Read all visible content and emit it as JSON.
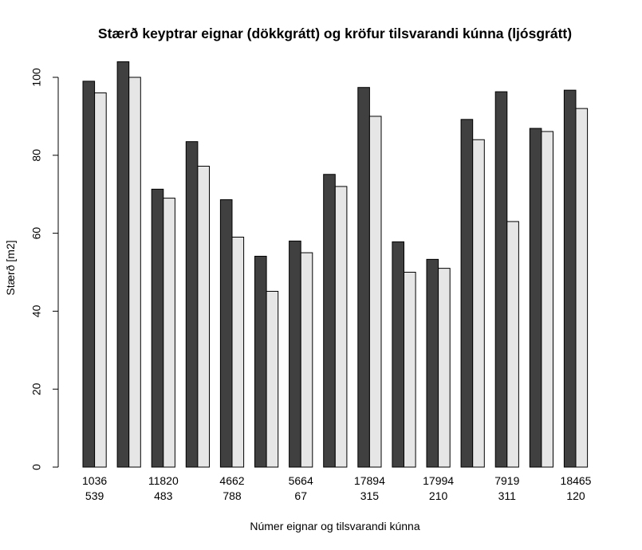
{
  "chart_data": {
    "type": "bar",
    "title": "Stærð keyptrar eignar (dökkgrátt) og kröfur tilsvarandi kúnna (ljósgrátt)",
    "xlabel": "Númer eignar og tilsvarandi kúnna",
    "ylabel": "Stærð [m2]",
    "ylim": [
      0,
      100
    ],
    "yticks": [
      0,
      20,
      40,
      60,
      80,
      100
    ],
    "grid": false,
    "categories": [
      [
        "1036",
        "539"
      ],
      [
        "",
        ""
      ],
      [
        "11820",
        "483"
      ],
      [
        "",
        ""
      ],
      [
        "4662",
        "788"
      ],
      [
        "",
        ""
      ],
      [
        "5664",
        "67"
      ],
      [
        "",
        ""
      ],
      [
        "17894",
        "315"
      ],
      [
        "",
        ""
      ],
      [
        "17994",
        "210"
      ],
      [
        "",
        ""
      ],
      [
        "7919",
        "311"
      ],
      [
        "",
        ""
      ],
      [
        "18465",
        "120"
      ]
    ],
    "series": [
      {
        "values": [
          99,
          104,
          71.3,
          83.5,
          68.6,
          54.1,
          58,
          75.1,
          97.4,
          57.8,
          53.3,
          89.2,
          96.3,
          86.9,
          96.7
        ]
      },
      {
        "values": [
          96,
          100,
          69,
          77.2,
          59,
          45.1,
          55,
          72,
          90,
          50,
          51,
          84,
          63,
          86.1,
          92
        ]
      }
    ],
    "colors": {
      "series_1": "#404040",
      "series_2": "#e6e6e6",
      "stroke": "#000000"
    }
  }
}
